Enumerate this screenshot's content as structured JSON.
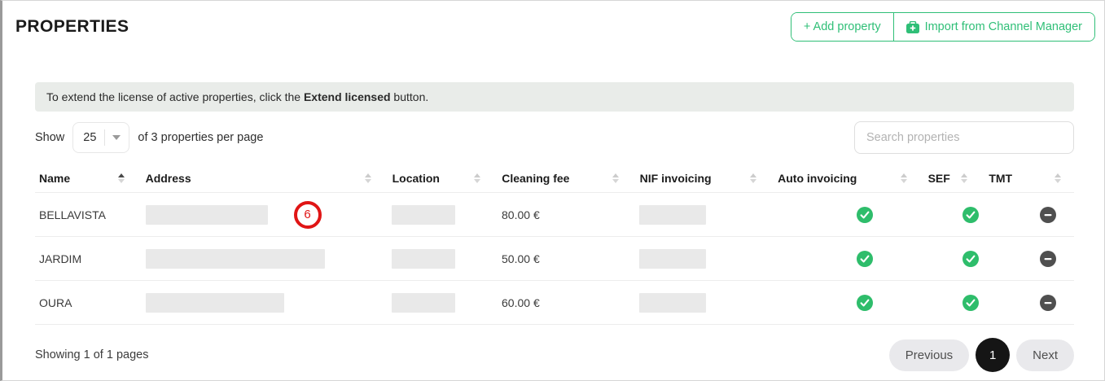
{
  "colors": {
    "accent_green": "#2fbf77",
    "check_green": "#2ebd6b",
    "minus_gray": "#4f4f4f",
    "annotation_red": "#e01515",
    "banner_bg": "#e9ece9"
  },
  "page": {
    "title": "PROPERTIES"
  },
  "toolbar": {
    "add_property_label": "+ Add property",
    "import_label": "Import from Channel Manager",
    "import_icon": "import-box-icon"
  },
  "banner": {
    "text_before": "To extend the license of active properties, click the ",
    "text_bold": "Extend licensed",
    "text_after": " button."
  },
  "controls": {
    "show_label": "Show",
    "page_size": "25",
    "per_page_label": "of 3 properties per page",
    "search_placeholder": "Search properties"
  },
  "table": {
    "columns": [
      {
        "label": "Name",
        "sort": "asc"
      },
      {
        "label": "Address",
        "sort": "none"
      },
      {
        "label": "Location",
        "sort": "none"
      },
      {
        "label": "Cleaning fee",
        "sort": "none"
      },
      {
        "label": "NIF invoicing",
        "sort": "none"
      },
      {
        "label": "Auto invoicing",
        "sort": "none"
      },
      {
        "label": "SEF",
        "sort": "none"
      },
      {
        "label": "TMT",
        "sort": "none"
      }
    ],
    "rows": [
      {
        "name": "BELLAVISTA",
        "address_redacted": true,
        "address_width": 150,
        "annotation": "6",
        "location_redacted": true,
        "location_width": 78,
        "cleaning_fee": "80.00 €",
        "nif_redacted": true,
        "nif_width": 82,
        "auto_invoicing": "yes",
        "sef": "yes",
        "tmt": "no"
      },
      {
        "name": "JARDIM",
        "address_redacted": true,
        "address_width": 220,
        "annotation": null,
        "location_redacted": true,
        "location_width": 78,
        "cleaning_fee": "50.00 €",
        "nif_redacted": true,
        "nif_width": 82,
        "auto_invoicing": "yes",
        "sef": "yes",
        "tmt": "no"
      },
      {
        "name": "OURA",
        "address_redacted": true,
        "address_width": 170,
        "annotation": null,
        "location_redacted": true,
        "location_width": 78,
        "cleaning_fee": "60.00 €",
        "nif_redacted": true,
        "nif_width": 82,
        "auto_invoicing": "yes",
        "sef": "yes",
        "tmt": "no"
      }
    ]
  },
  "footer": {
    "summary": "Showing 1 of 1 pages",
    "previous_label": "Previous",
    "current_page": "1",
    "next_label": "Next"
  }
}
